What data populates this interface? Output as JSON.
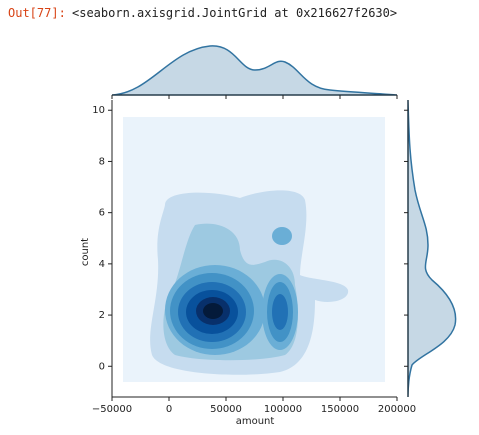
{
  "prompt": "Out[77]:",
  "output": "<seaborn.axisgrid.JointGrid at 0x216627f2630>",
  "chart_data": {
    "type": "kde",
    "xlabel": "amount",
    "ylabel": "count",
    "xlim": [
      -50000,
      200000
    ],
    "xticks": [
      {
        "value": -50000,
        "label": "−50000"
      },
      0,
      50000,
      100000,
      150000,
      200000
    ],
    "ylim": [
      -1.2,
      10.4
    ],
    "yticks": [
      0,
      2,
      4,
      6,
      8,
      10
    ],
    "color": "#3274a1"
  }
}
